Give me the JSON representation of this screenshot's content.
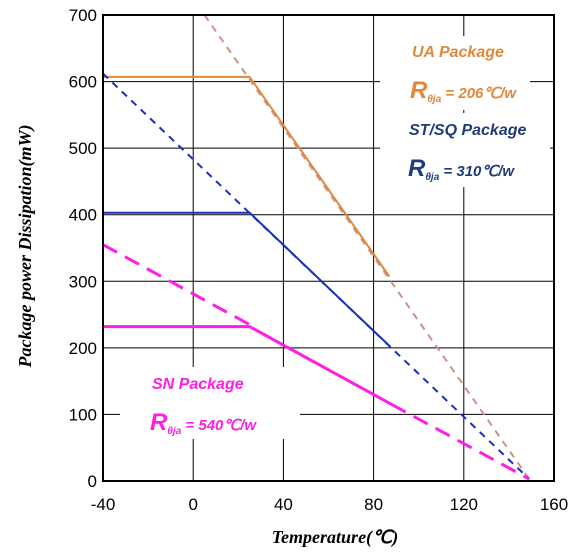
{
  "chart_data": {
    "type": "line",
    "xlabel": "Temperature(℃)",
    "ylabel": "Package power Dissipation(mW)",
    "xlim": [
      -40,
      160
    ],
    "ylim": [
      0,
      700
    ],
    "x_ticks": [
      "-40",
      "0",
      "40",
      "80",
      "120",
      "160"
    ],
    "y_ticks": [
      "0",
      "100",
      "200",
      "300",
      "400",
      "500",
      "600",
      "700"
    ],
    "grid": true,
    "colors": {
      "ua": "#e0883a",
      "ua_dashed": "#c9938a",
      "st": "#1a2fbf",
      "sn": "#ff1ee6",
      "st_label": "#1f3b78"
    },
    "series": [
      {
        "key": "ua",
        "solid": [
          [
            -40,
            607
          ],
          [
            25,
            607
          ],
          [
            87,
            307
          ]
        ],
        "dashed": [
          [
            5,
            700
          ],
          [
            149,
            3
          ]
        ]
      },
      {
        "key": "st",
        "solid": [
          [
            -40,
            403
          ],
          [
            25,
            403
          ],
          [
            87,
            203
          ]
        ],
        "dashed": [
          [
            -40,
            612
          ],
          [
            149,
            3
          ]
        ]
      },
      {
        "key": "sn",
        "solid": [
          [
            -40,
            232
          ],
          [
            25,
            232
          ],
          [
            88,
            115
          ]
        ],
        "dashed_segments": [
          [
            [
              -40,
              355
            ],
            [
              25,
              235
            ]
          ],
          [
            [
              88,
              115
            ],
            [
              149,
              3
            ]
          ]
        ]
      }
    ],
    "annotations": {
      "ua": {
        "package": "UA Package",
        "r_main": "R",
        "r_sub": "θja",
        "r_value": " = 206℃/w"
      },
      "st": {
        "package": "ST/SQ Package",
        "r_main": "R",
        "r_sub": "θja",
        "r_value": " = 310℃/w"
      },
      "sn": {
        "package": "SN Package",
        "r_main": "R",
        "r_sub": "θja",
        "r_value": " = 540℃/w"
      }
    }
  }
}
